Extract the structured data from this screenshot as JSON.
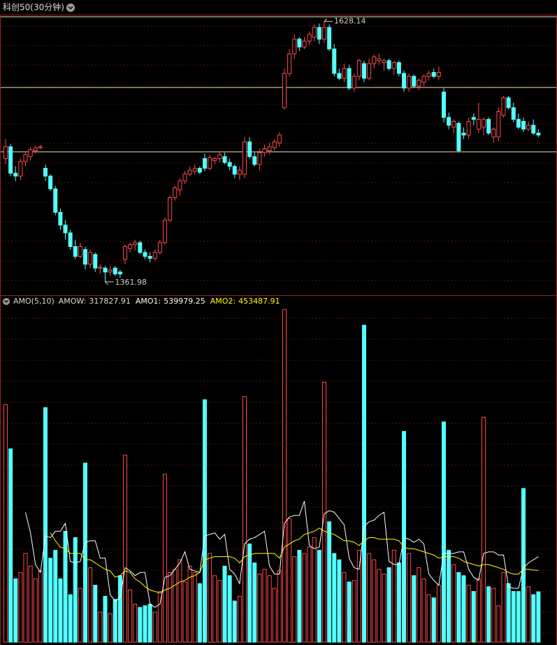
{
  "header": {
    "title": "科创50(30分钟)"
  },
  "chart_data": [
    {
      "type": "candlestick",
      "up_color": "#ff4a4a",
      "down_color": "#54ffff",
      "ylim": [
        1349,
        1635
      ],
      "open": [
        1488,
        1500,
        1473,
        1470,
        1485,
        1490,
        1496,
        1499,
        1478,
        1470,
        1457,
        1433,
        1420,
        1412,
        1398,
        1388,
        1395,
        1380,
        1390,
        1376,
        1376,
        1372,
        1376,
        1372,
        1385,
        1396,
        1400,
        1402,
        1392,
        1388,
        1386,
        1392,
        1402,
        1425,
        1448,
        1456,
        1465,
        1472,
        1475,
        1478,
        1488,
        1478,
        1486,
        1488,
        1490,
        1484,
        1480,
        1472,
        1472,
        1505,
        1490,
        1482,
        1494,
        1496,
        1499,
        1504,
        1540,
        1575,
        1595,
        1610,
        1602,
        1608,
        1612,
        1622,
        1610,
        1622,
        1600,
        1575,
        1570,
        1580,
        1560,
        1572,
        1585,
        1570,
        1585,
        1588,
        1586,
        1588,
        1580,
        1586,
        1575,
        1560,
        1572,
        1562,
        1566,
        1572,
        1576,
        1572,
        1556,
        1530,
        1520,
        1524,
        1514,
        1512,
        1530,
        1518,
        1520,
        1528,
        1510,
        1510,
        1532,
        1550,
        1540,
        1528,
        1526,
        1518,
        1522,
        1514
      ],
      "high": [
        1508,
        1503,
        1480,
        1488,
        1495,
        1500,
        1501,
        1502,
        1482,
        1472,
        1460,
        1437,
        1425,
        1415,
        1405,
        1402,
        1398,
        1395,
        1392,
        1380,
        1378,
        1378,
        1378,
        1374,
        1400,
        1402,
        1405,
        1404,
        1395,
        1392,
        1395,
        1405,
        1428,
        1450,
        1460,
        1468,
        1475,
        1480,
        1482,
        1480,
        1493,
        1492,
        1490,
        1495,
        1494,
        1488,
        1482,
        1480,
        1510,
        1510,
        1495,
        1498,
        1502,
        1504,
        1508,
        1515,
        1580,
        1600,
        1615,
        1612,
        1612,
        1618,
        1625,
        1626,
        1628.14,
        1625,
        1605,
        1580,
        1585,
        1584,
        1575,
        1590,
        1588,
        1590,
        1594,
        1595,
        1590,
        1590,
        1588,
        1588,
        1578,
        1575,
        1574,
        1570,
        1574,
        1578,
        1580,
        1582,
        1560,
        1535,
        1528,
        1526,
        1520,
        1530,
        1534,
        1545,
        1530,
        1530,
        1520,
        1540,
        1552,
        1552,
        1545,
        1534,
        1530,
        1526,
        1528,
        1518
      ],
      "low": [
        1482,
        1470,
        1465,
        1466,
        1480,
        1486,
        1493,
        1497,
        1465,
        1455,
        1430,
        1415,
        1405,
        1395,
        1385,
        1386,
        1375,
        1376,
        1372,
        1370,
        1361.98,
        1368,
        1368,
        1366,
        1380,
        1392,
        1394,
        1390,
        1385,
        1382,
        1384,
        1390,
        1400,
        1423,
        1445,
        1450,
        1462,
        1470,
        1472,
        1472,
        1475,
        1476,
        1482,
        1484,
        1482,
        1476,
        1468,
        1466,
        1468,
        1488,
        1480,
        1476,
        1490,
        1492,
        1496,
        1500,
        1538,
        1572,
        1590,
        1598,
        1600,
        1604,
        1608,
        1605,
        1606,
        1598,
        1572,
        1568,
        1566,
        1558,
        1556,
        1568,
        1566,
        1568,
        1580,
        1584,
        1578,
        1578,
        1574,
        1572,
        1556,
        1556,
        1560,
        1558,
        1562,
        1568,
        1570,
        1568,
        1525,
        1518,
        1514,
        1494,
        1508,
        1508,
        1522,
        1514,
        1512,
        1512,
        1504,
        1506,
        1530,
        1538,
        1525,
        1518,
        1515,
        1516,
        1512,
        1510
      ],
      "close": [
        1500,
        1473,
        1470,
        1485,
        1492,
        1497,
        1499,
        1500,
        1470,
        1457,
        1433,
        1420,
        1412,
        1398,
        1388,
        1398,
        1380,
        1392,
        1376,
        1377,
        1372,
        1374,
        1370,
        1370,
        1398,
        1400,
        1402,
        1392,
        1388,
        1386,
        1392,
        1402,
        1425,
        1448,
        1458,
        1465,
        1472,
        1476,
        1478,
        1474,
        1478,
        1489,
        1488,
        1492,
        1484,
        1480,
        1472,
        1476,
        1505,
        1490,
        1482,
        1494,
        1498,
        1500,
        1505,
        1512,
        1575,
        1595,
        1610,
        1602,
        1608,
        1615,
        1622,
        1610,
        1622,
        1600,
        1575,
        1570,
        1580,
        1560,
        1572,
        1588,
        1570,
        1585,
        1592,
        1590,
        1588,
        1580,
        1586,
        1575,
        1560,
        1572,
        1562,
        1568,
        1572,
        1575,
        1572,
        1576,
        1530,
        1522,
        1526,
        1496,
        1512,
        1526,
        1528,
        1528,
        1528,
        1514,
        1518,
        1536,
        1550,
        1540,
        1528,
        1520,
        1518,
        1522,
        1514,
        1512
      ]
    },
    {
      "type": "bar",
      "indicator": "AMO(5,10)",
      "ylim": [
        0,
        2123000
      ],
      "series": [
        {
          "name": "AMOW:",
          "color": "#dddddd",
          "values": [
            1500000,
            1220000,
            400000,
            440000,
            560000,
            480000,
            400000,
            450000,
            1480000,
            530000,
            580000,
            400000,
            700000,
            300000,
            660000,
            340000,
            1130000,
            470000,
            360000,
            190000,
            290000,
            180000,
            270000,
            420000,
            1180000,
            330000,
            240000,
            220000,
            230000,
            240000,
            190000,
            320000,
            1060000,
            440000,
            460000,
            520000,
            380000,
            480000,
            440000,
            370000,
            1530000,
            560000,
            420000,
            390000,
            480000,
            420000,
            260000,
            290000,
            1550000,
            620000,
            500000,
            430000,
            460000,
            420000,
            340000,
            450000,
            2100000,
            780000,
            540000,
            580000,
            560000,
            600000,
            660000,
            580000,
            1640000,
            760000,
            560000,
            520000,
            440000,
            380000,
            390000,
            580000,
            2000000,
            560000,
            520000,
            460000,
            430000,
            470000,
            580000,
            500000,
            1330000,
            560000,
            420000,
            470000,
            400000,
            300000,
            280000,
            360000,
            1390000,
            580000,
            490000,
            440000,
            420000,
            360000,
            320000,
            400000,
            1420000,
            350000,
            340000,
            230000,
            440000,
            370000,
            320000,
            320000,
            970000,
            350000,
            300000,
            317827.91
          ]
        },
        {
          "name": "AMO1:",
          "color": "#ffffff",
          "values": [
            null,
            null,
            null,
            null,
            820000,
            690000,
            490000,
            440000,
            670000,
            660000,
            700000,
            700000,
            750000,
            510000,
            500000,
            510000,
            630000,
            640000,
            640000,
            530000,
            530000,
            300000,
            260000,
            280000,
            470000,
            450000,
            420000,
            440000,
            440000,
            240000,
            220000,
            240000,
            410000,
            420000,
            460000,
            500000,
            570000,
            460000,
            450000,
            440000,
            670000,
            680000,
            690000,
            650000,
            680000,
            460000,
            430000,
            370000,
            620000,
            650000,
            660000,
            680000,
            700000,
            480000,
            430000,
            430000,
            750000,
            790000,
            800000,
            800000,
            890000,
            610000,
            590000,
            600000,
            810000,
            830000,
            820000,
            780000,
            740000,
            530000,
            470000,
            460000,
            730000,
            760000,
            770000,
            800000,
            820000,
            510000,
            490000,
            490000,
            660000,
            650000,
            630000,
            650000,
            620000,
            430000,
            390000,
            360000,
            560000,
            560000,
            560000,
            570000,
            570000,
            460000,
            410000,
            390000,
            560000,
            570000,
            570000,
            550000,
            550000,
            350000,
            340000,
            340000,
            470000,
            500000,
            520000,
            539979.25
          ]
        },
        {
          "name": "AMO2:",
          "color": "#ffff00",
          "values": [
            null,
            null,
            null,
            null,
            null,
            null,
            null,
            null,
            null,
            690000,
            640000,
            600000,
            590000,
            560000,
            560000,
            560000,
            520000,
            520000,
            500000,
            480000,
            460000,
            450000,
            410000,
            420000,
            450000,
            440000,
            400000,
            380000,
            350000,
            330000,
            320000,
            310000,
            330000,
            340000,
            360000,
            380000,
            390000,
            410000,
            420000,
            440000,
            520000,
            530000,
            540000,
            540000,
            540000,
            540000,
            530000,
            500000,
            540000,
            550000,
            560000,
            560000,
            560000,
            560000,
            560000,
            530000,
            600000,
            620000,
            640000,
            650000,
            680000,
            690000,
            700000,
            720000,
            700000,
            690000,
            680000,
            660000,
            640000,
            640000,
            630000,
            610000,
            640000,
            660000,
            660000,
            650000,
            650000,
            650000,
            650000,
            640000,
            600000,
            590000,
            590000,
            580000,
            570000,
            560000,
            550000,
            530000,
            540000,
            540000,
            540000,
            530000,
            510000,
            500000,
            490000,
            480000,
            490000,
            490000,
            480000,
            470000,
            460000,
            440000,
            430000,
            430000,
            460000,
            460000,
            455000,
            453487.91
          ]
        }
      ]
    }
  ]
}
